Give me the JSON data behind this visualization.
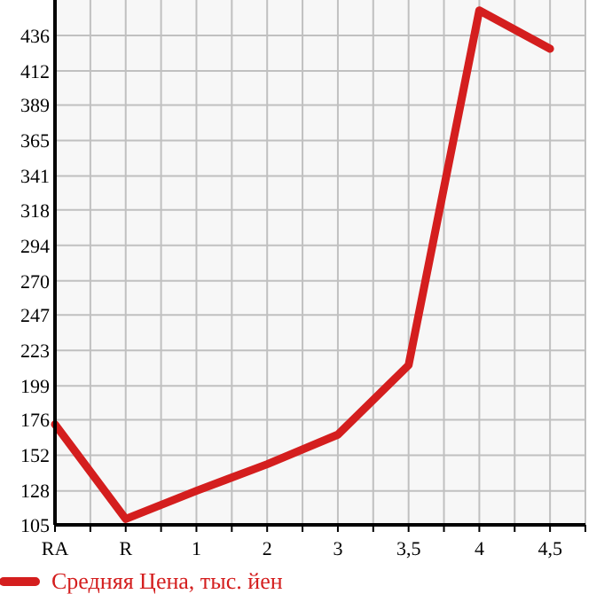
{
  "chart_data": {
    "type": "line",
    "categories": [
      "RA",
      "R",
      "1",
      "2",
      "3",
      "3,5",
      "4",
      "4,5"
    ],
    "series": [
      {
        "name": "Средняя Цена, тыс. йен",
        "color": "#d41e1e",
        "values": [
          173,
          109,
          128,
          146,
          166,
          213,
          453,
          427
        ]
      }
    ],
    "ylim": [
      105,
      460
    ],
    "yticks": [
      105,
      128,
      152,
      176,
      199,
      223,
      247,
      270,
      294,
      318,
      341,
      365,
      389,
      412,
      436
    ],
    "grid": true,
    "legend": "bottom",
    "marker": "none",
    "line_style": "solid"
  }
}
